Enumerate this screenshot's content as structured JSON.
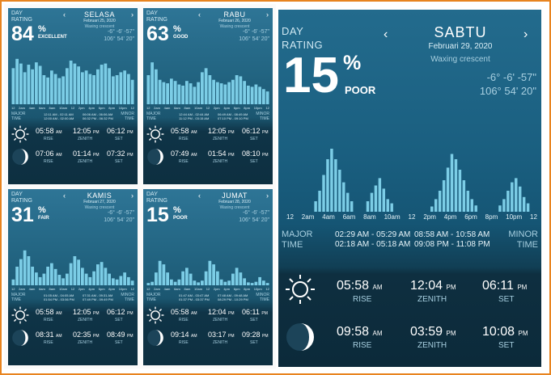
{
  "colors": {
    "frame": "#e8841f",
    "panel_top": "#2e7596",
    "panel_bottom": "#0d2f40",
    "bar": "#7ccde6"
  },
  "labels": {
    "day": "DAY",
    "rating": "RATING",
    "major": [
      "MAJOR",
      "TIME"
    ],
    "minor": [
      "MINOR",
      "TIME"
    ],
    "rise": "RISE",
    "zenith": "ZENITH",
    "set": "SET",
    "coord1": "-6° -6' -57\"",
    "coord2": "106° 54' 20\""
  },
  "hours": [
    "12",
    "2am",
    "4am",
    "6am",
    "8am",
    "10am",
    "12",
    "2pm",
    "4pm",
    "6pm",
    "8pm",
    "10pm",
    "12"
  ],
  "cards": [
    {
      "day": "SELASA",
      "date": "Februari 25, 2020",
      "phase": "Waxing crescent",
      "percent": "84",
      "quality": "EXCELLENT",
      "major": [
        "12:11 AM - 02:11 AM",
        "12:00 AM - 02:00 AM"
      ],
      "minor": [
        "06:06 AM - 06:06 AM",
        "06:32 PM - 06:32 PM"
      ],
      "sun": {
        "rise": "05:58",
        "rise_ampm": "AM",
        "zenith": "12:05",
        "zenith_ampm": "PM",
        "set": "06:12",
        "set_ampm": "PM"
      },
      "moon": {
        "rise": "07:06",
        "rise_ampm": "AM",
        "zenith": "01:14",
        "zenith_ampm": "PM",
        "set": "07:32",
        "set_ampm": "PM"
      },
      "bars": [
        0.62,
        0.78,
        0.7,
        0.55,
        0.68,
        0.6,
        0.72,
        0.66,
        0.5,
        0.46,
        0.58,
        0.52,
        0.45,
        0.48,
        0.62,
        0.75,
        0.7,
        0.65,
        0.55,
        0.58,
        0.52,
        0.5,
        0.6,
        0.68,
        0.7,
        0.62,
        0.48,
        0.5,
        0.55,
        0.58,
        0.52,
        0.42
      ]
    },
    {
      "day": "RABU",
      "date": "Februari 26, 2020",
      "phase": "Waxing crescent",
      "percent": "63",
      "quality": "GOOD",
      "major": [
        "12:44 AM - 02:44 AM",
        "11:12 PM - 03:15 AM"
      ],
      "minor": [
        "06:49 AM - 08:49 AM",
        "07:10 PM - 09:10 PM"
      ],
      "sun": {
        "rise": "05:58",
        "rise_ampm": "AM",
        "zenith": "12:05",
        "zenith_ampm": "PM",
        "set": "06:12",
        "set_ampm": "PM"
      },
      "moon": {
        "rise": "07:49",
        "rise_ampm": "AM",
        "zenith": "01:54",
        "zenith_ampm": "PM",
        "set": "08:10",
        "set_ampm": "PM"
      },
      "bars": [
        0.5,
        0.72,
        0.6,
        0.42,
        0.38,
        0.36,
        0.44,
        0.4,
        0.34,
        0.32,
        0.4,
        0.36,
        0.3,
        0.38,
        0.55,
        0.62,
        0.5,
        0.42,
        0.38,
        0.36,
        0.34,
        0.38,
        0.42,
        0.5,
        0.48,
        0.4,
        0.32,
        0.3,
        0.34,
        0.3,
        0.26,
        0.22
      ]
    },
    {
      "day": "KAMIS",
      "date": "Februari 27, 2020",
      "phase": "Waxing crescent",
      "percent": "31",
      "quality": "FAIR",
      "major": [
        "01:05 AM - 04:05 AM",
        "01:54 PM - 03:56 PM"
      ],
      "minor": [
        "07:31 AM - 09:31 AM",
        "07:49 PM - 09:49 PM"
      ],
      "sun": {
        "rise": "05:58",
        "rise_ampm": "AM",
        "zenith": "12:05",
        "zenith_ampm": "PM",
        "set": "06:12",
        "set_ampm": "PM"
      },
      "moon": {
        "rise": "08:31",
        "rise_ampm": "AM",
        "zenith": "02:35",
        "zenith_ampm": "PM",
        "set": "08:49",
        "set_ampm": "PM"
      },
      "bars": [
        0.1,
        0.32,
        0.45,
        0.6,
        0.5,
        0.32,
        0.22,
        0.14,
        0.2,
        0.32,
        0.38,
        0.28,
        0.18,
        0.12,
        0.2,
        0.38,
        0.5,
        0.44,
        0.3,
        0.2,
        0.14,
        0.24,
        0.36,
        0.4,
        0.3,
        0.2,
        0.12,
        0.1,
        0.16,
        0.22,
        0.14,
        0.08
      ]
    },
    {
      "day": "JUMAT",
      "date": "Februari 28, 2020",
      "phase": "Waxing crescent",
      "percent": "15",
      "quality": "POOR",
      "major": [
        "01:47 AM - 03:47 AM",
        "01:37 PM - 03:37 PM"
      ],
      "minor": [
        "07:48 AM - 09:48 AM",
        "08:29 PM - 10:29 PM"
      ],
      "sun": {
        "rise": "05:58",
        "rise_ampm": "AM",
        "zenith": "12:04",
        "zenith_ampm": "PM",
        "set": "06:11",
        "set_ampm": "PM"
      },
      "moon": {
        "rise": "09:14",
        "rise_ampm": "AM",
        "zenith": "03:17",
        "zenith_ampm": "PM",
        "set": "09:28",
        "set_ampm": "PM"
      },
      "bars": [
        0.04,
        0.06,
        0.22,
        0.42,
        0.36,
        0.22,
        0.1,
        0.06,
        0.1,
        0.24,
        0.3,
        0.2,
        0.08,
        0.05,
        0.08,
        0.24,
        0.42,
        0.36,
        0.24,
        0.1,
        0.06,
        0.08,
        0.2,
        0.3,
        0.22,
        0.12,
        0.05,
        0.04,
        0.06,
        0.14,
        0.08,
        0.04
      ]
    }
  ],
  "big": {
    "day": "SABTU",
    "date": "Februari 29, 2020",
    "phase": "Waxing crescent",
    "percent": "15",
    "quality": "POOR",
    "major": [
      "02:29 AM - 05:29 AM",
      "02:18 AM - 05:18 AM"
    ],
    "minor": [
      "08:58 AM - 10:58 AM",
      "09:08 PM - 11:08 PM"
    ],
    "sun": {
      "rise": "05:58",
      "rise_ampm": "AM",
      "zenith": "12:04",
      "zenith_ampm": "PM",
      "set": "06:11",
      "set_ampm": "PM"
    },
    "moon": {
      "rise": "09:58",
      "rise_ampm": "AM",
      "zenith": "03:59",
      "zenith_ampm": "PM",
      "set": "10:08",
      "set_ampm": "PM"
    },
    "bars": [
      0,
      0,
      0,
      0,
      0,
      0,
      0,
      0,
      0.1,
      0.2,
      0.35,
      0.5,
      0.6,
      0.5,
      0.4,
      0.28,
      0.18,
      0.1,
      0,
      0,
      0,
      0.1,
      0.18,
      0.25,
      0.32,
      0.22,
      0.12,
      0.08,
      0,
      0,
      0,
      0,
      0,
      0,
      0,
      0,
      0,
      0.05,
      0.12,
      0.2,
      0.3,
      0.42,
      0.55,
      0.5,
      0.4,
      0.3,
      0.2,
      0.12,
      0.06,
      0,
      0,
      0,
      0,
      0,
      0.06,
      0.12,
      0.2,
      0.28,
      0.32,
      0.24,
      0.14,
      0.08,
      0,
      0
    ]
  }
}
